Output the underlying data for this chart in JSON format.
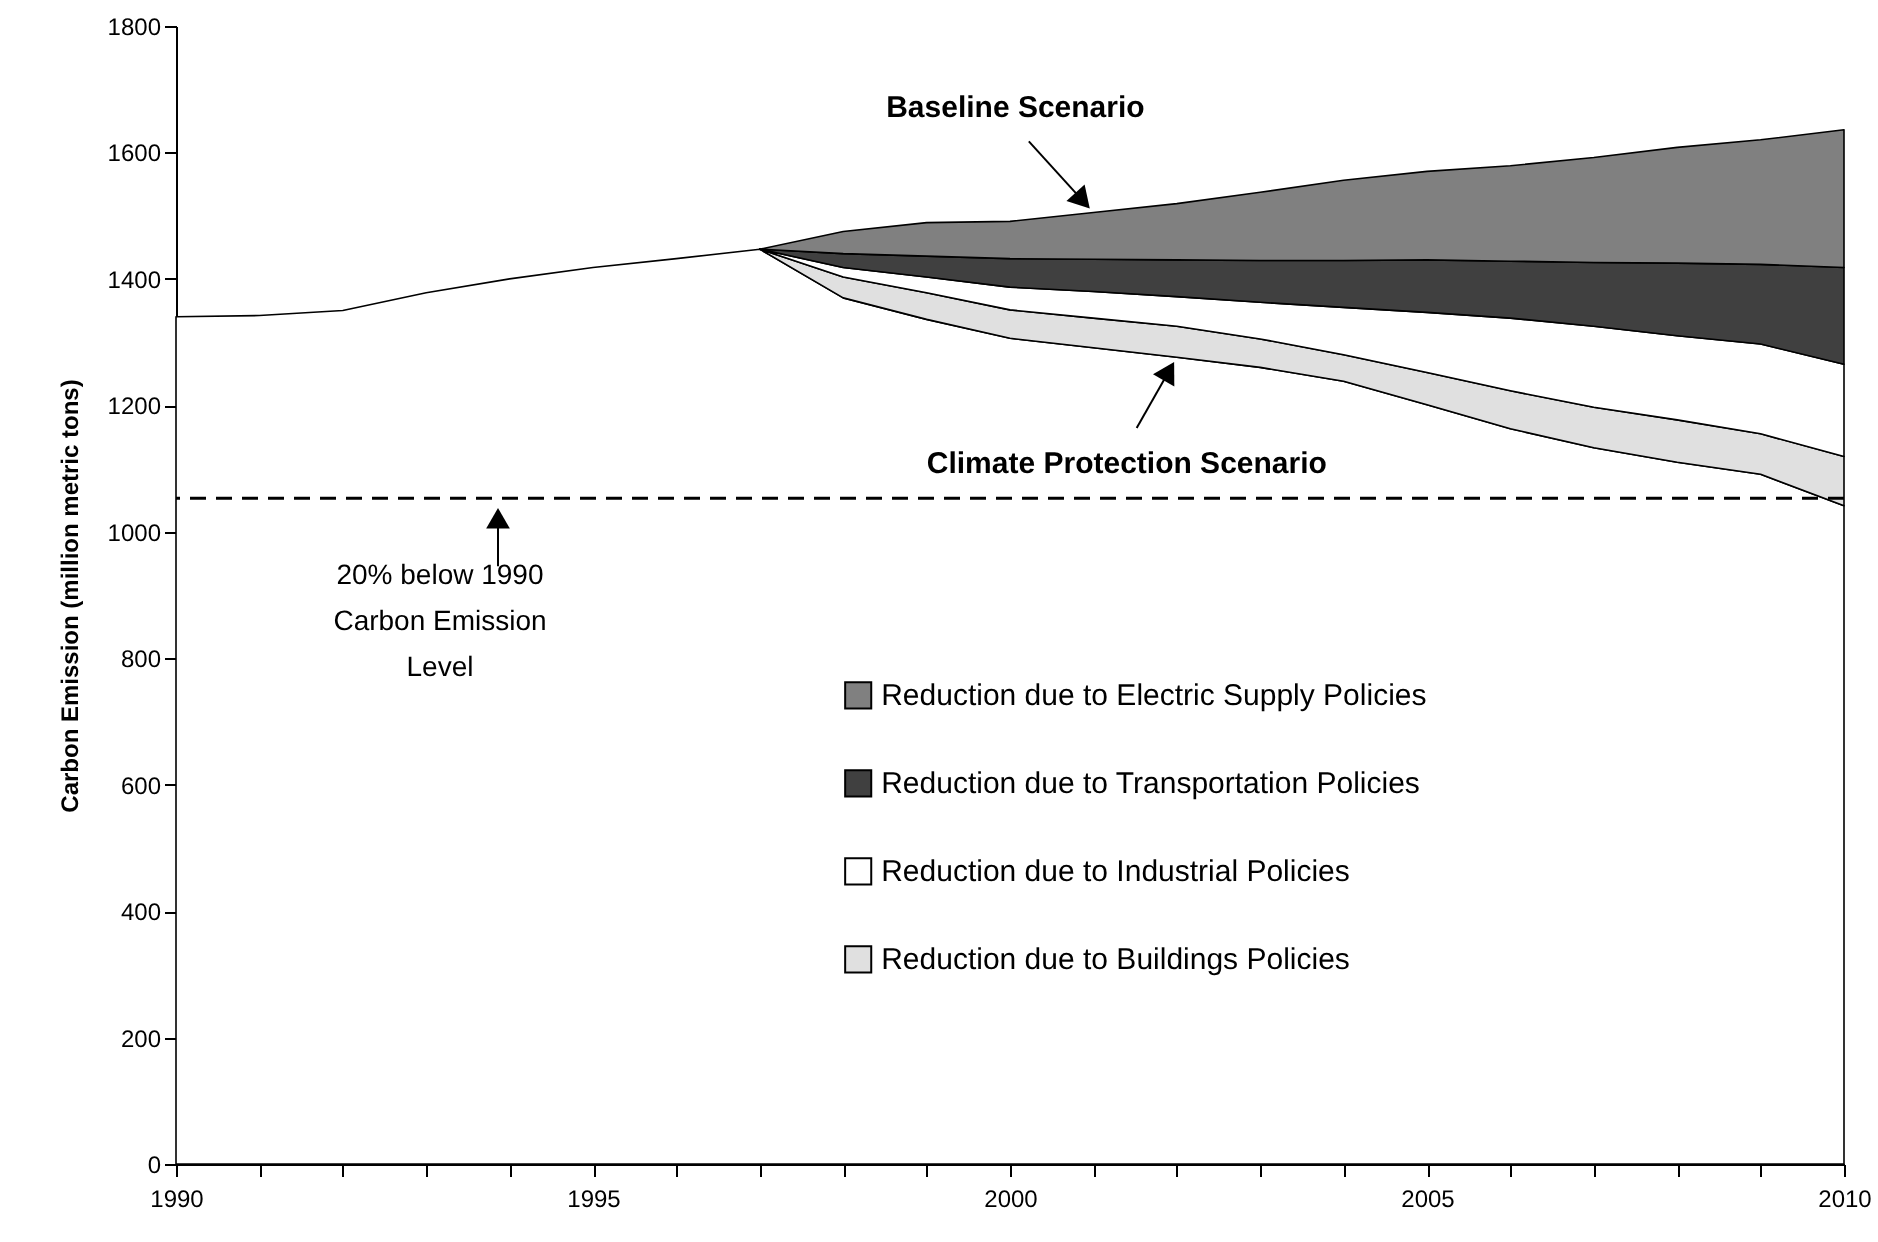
{
  "chart_data": {
    "type": "area",
    "ylabel": "Carbon Emission (million metric tons)",
    "x": [
      1990,
      1991,
      1992,
      1993,
      1994,
      1995,
      1996,
      1997,
      1998,
      1999,
      2000,
      2001,
      2002,
      2003,
      2004,
      2005,
      2006,
      2007,
      2008,
      2009,
      2010
    ],
    "xlim": [
      1990,
      2010
    ],
    "xticks": [
      1990,
      {
        "value": 1991,
        "label": null
      },
      {
        "value": 1992,
        "label": null
      },
      {
        "value": 1993,
        "label": null
      },
      {
        "value": 1994,
        "label": null
      },
      1995,
      {
        "value": 1996,
        "label": null
      },
      {
        "value": 1997,
        "label": null
      },
      {
        "value": 1998,
        "label": null
      },
      {
        "value": 1999,
        "label": null
      },
      2000,
      {
        "value": 2001,
        "label": null
      },
      {
        "value": 2002,
        "label": null
      },
      {
        "value": 2003,
        "label": null
      },
      {
        "value": 2004,
        "label": null
      },
      2005,
      {
        "value": 2006,
        "label": null
      },
      {
        "value": 2007,
        "label": null
      },
      {
        "value": 2008,
        "label": null
      },
      {
        "value": 2009,
        "label": null
      },
      2010
    ],
    "ylim": [
      0,
      1800
    ],
    "yticks": [
      0,
      200,
      400,
      600,
      800,
      1000,
      1200,
      1400,
      1600,
      1800
    ],
    "stacked": true,
    "grid": false,
    "legend": "right",
    "series": [
      {
        "type": "area",
        "color": "#ffffff",
        "values": [
          1340,
          1342,
          1350,
          1378,
          1400,
          1418,
          1432,
          1447,
          1370,
          1336,
          1306,
          1291,
          1276,
          1260,
          1238,
          1201,
          1163,
          1133,
          1110,
          1091,
          1041
        ]
      },
      {
        "name": "Reduction due to Buildings Policies",
        "color": "#e0e0e0",
        "values": [
          null,
          null,
          null,
          null,
          null,
          null,
          null,
          0,
          33,
          42,
          45,
          47,
          49,
          45,
          42,
          51,
          60,
          64,
          67,
          64,
          78
        ]
      },
      {
        "name": "Reduction due to Industrial Policies",
        "color": "#ffffff",
        "values": [
          null,
          null,
          null,
          null,
          null,
          null,
          null,
          0,
          15,
          25,
          36,
          42,
          47,
          58,
          75,
          95,
          115,
          128,
          133,
          142,
          146
        ]
      },
      {
        "name": "Reduction due to Transportation Policies",
        "color": "#404040",
        "values": [
          null,
          null,
          null,
          null,
          null,
          null,
          null,
          0,
          22,
          33,
          45,
          51,
          58,
          66,
          74,
          83,
          90,
          101,
          115,
          126,
          153
        ]
      },
      {
        "name": "Reduction due to Electric Supply Policies",
        "color": "#808080",
        "values": [
          null,
          null,
          null,
          null,
          null,
          null,
          null,
          0,
          35,
          53,
          59,
          74,
          89,
          108,
          127,
          140,
          151,
          166,
          183,
          197,
          218
        ]
      }
    ],
    "ref_lines": [
      {
        "axis": "y",
        "value": 1053,
        "line_style": "dashed",
        "color": "#000000"
      }
    ],
    "annotations": [
      {
        "text": "Baseline Scenario",
        "x": 2001,
        "y": 1505
      },
      {
        "text": "Climate Protection Scenario",
        "x": 2002,
        "y": 1276
      },
      "20% below 1990\nCarbon Emission\nLevel"
    ]
  }
}
